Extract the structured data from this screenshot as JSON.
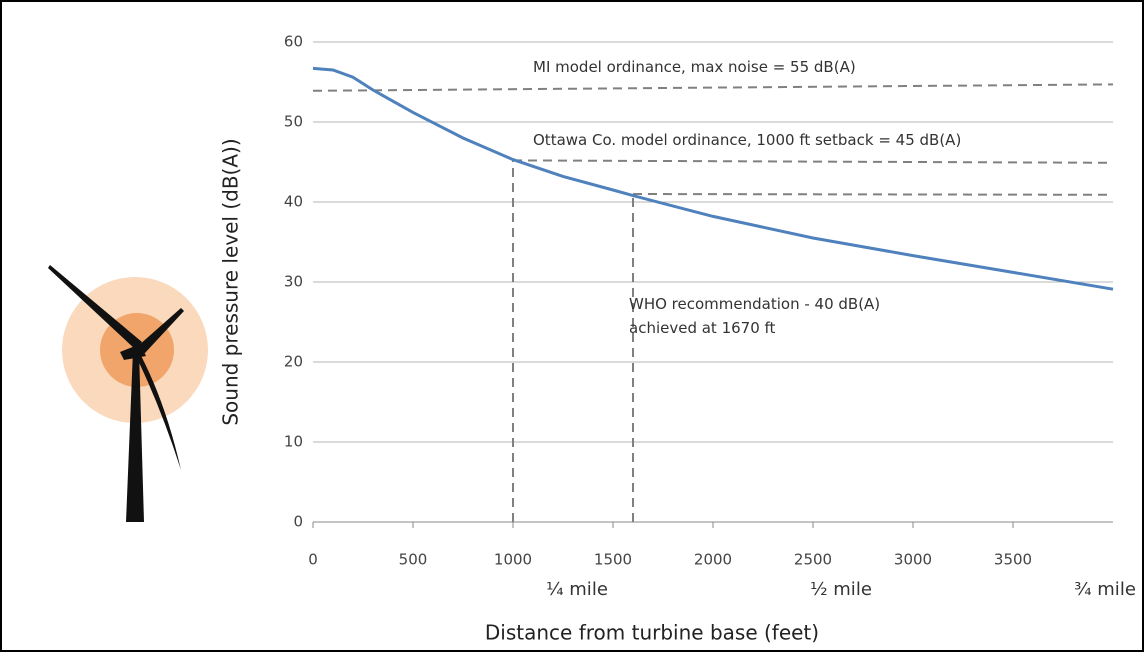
{
  "chart_data": {
    "type": "line",
    "x_label": "Distance from turbine base (feet)",
    "y_label": "Sound pressure level (dB(A))",
    "x": [
      0,
      100,
      200,
      300,
      500,
      750,
      1000,
      1250,
      1500,
      1600,
      2000,
      2500,
      3000,
      3500,
      4000
    ],
    "values": [
      56.7,
      56.5,
      55.6,
      54,
      51.2,
      48,
      45.3,
      43.2,
      41.5,
      40.8,
      38.2,
      35.5,
      33.3,
      31.2,
      29.1
    ],
    "color": "#4f81bd",
    "xlim": [
      0,
      4000
    ],
    "ylim": [
      0,
      60
    ],
    "xticks": [
      0,
      500,
      1000,
      1500,
      2000,
      2500,
      3000,
      3500
    ],
    "yticks": [
      0,
      10,
      20,
      30,
      40,
      50,
      60
    ],
    "grid": true,
    "mile_ticks": [
      {
        "value": 1320,
        "label": "¼ mile"
      },
      {
        "value": 2640,
        "label": "½ mile"
      },
      {
        "value": 3960,
        "label": "¾  mile"
      }
    ],
    "reference_color": "#808080",
    "reference_lines": [
      {
        "x": [
          0,
          4000
        ],
        "values": [
          53.9,
          54.7
        ]
      },
      {
        "x": [
          1000,
          4000
        ],
        "values": [
          45.2,
          44.9
        ]
      },
      {
        "x": [
          1600,
          4000
        ],
        "values": [
          41,
          40.9
        ]
      },
      {
        "x": [
          1000,
          1000
        ],
        "values": [
          0,
          45.2
        ]
      },
      {
        "x": [
          1600,
          1600
        ],
        "values": [
          0,
          41
        ]
      }
    ],
    "annotations": [
      {
        "text": "MI model ordinance, max noise = 55 dB(A)",
        "x": 1100,
        "y": 56.8
      },
      {
        "text": "Ottawa Co. model ordinance, 1000 ft setback = 45 dB(A)",
        "x": 1100,
        "y": 47.7
      },
      {
        "text": "WHO recommendation - 40 dB(A)",
        "x": 1580,
        "y": 27.2
      },
      {
        "text": "achieved at 1670 ft",
        "x": 1580,
        "y": 24.2
      }
    ]
  }
}
